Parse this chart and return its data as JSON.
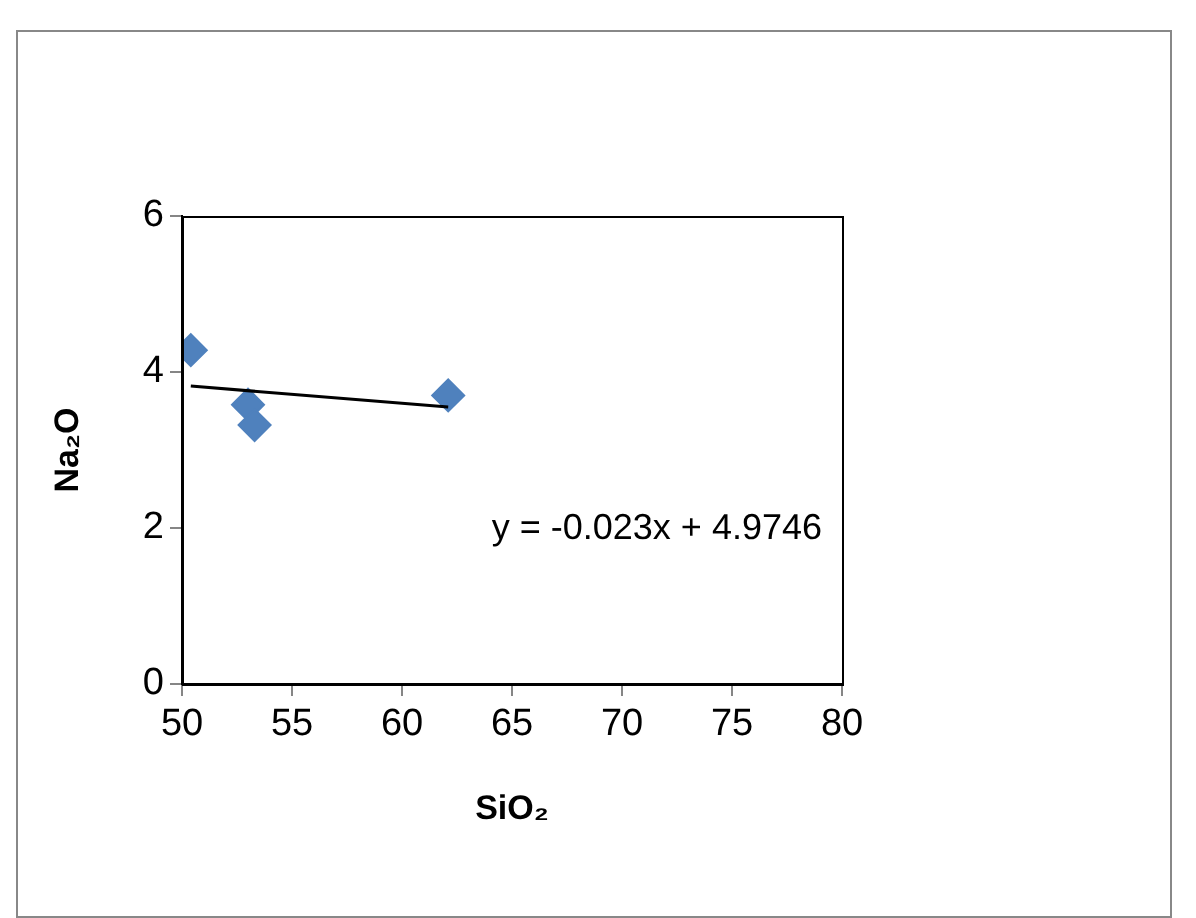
{
  "chart_data": {
    "type": "scatter",
    "xlabel": "SiO₂",
    "ylabel": "Na₂O",
    "xlim": [
      50,
      80
    ],
    "xticks": [
      50,
      55,
      60,
      65,
      70,
      75,
      80
    ],
    "ylim": [
      0,
      6
    ],
    "yticks": [
      0,
      2,
      4,
      6
    ],
    "grid": false,
    "legend": false,
    "marker": "diamond",
    "series": [
      {
        "color": "#4f81bd",
        "x": [
          50.4,
          53.0,
          53.3,
          62.1
        ],
        "values": [
          4.28,
          3.58,
          3.32,
          3.7
        ]
      },
      {
        "type": "line",
        "color": "#000000",
        "marker": "none",
        "x": [
          50.4,
          62.1
        ],
        "values": [
          3.82,
          3.55
        ]
      }
    ],
    "annotations": [
      "y = -0.023x + 4.9746"
    ]
  }
}
